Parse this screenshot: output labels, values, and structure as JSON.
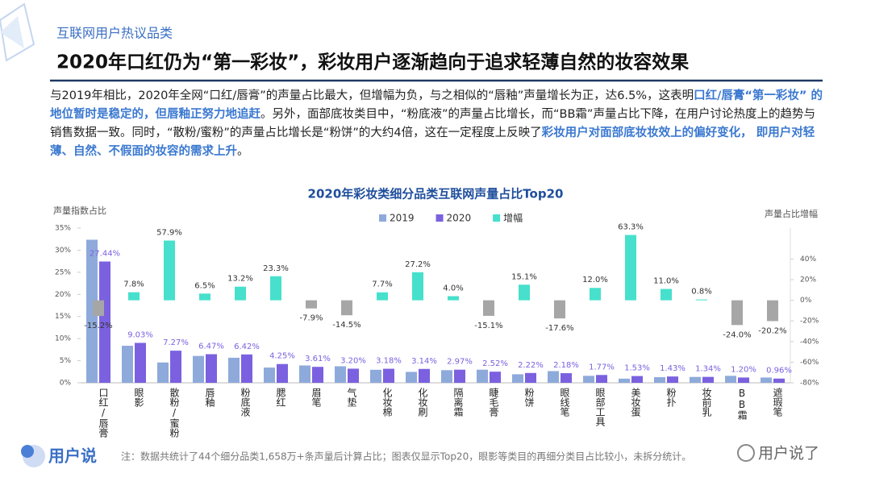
{
  "header": {
    "subtitle": "互联网用户热议品类",
    "title": "2020年口红仍为“第一彩妆”，彩妆用户逐渐趋向于追求轻薄自然的妆容效果"
  },
  "paragraph": {
    "segments": [
      {
        "text": "与2019年相比，2020年全网“口红/唇膏”的声量占比最大，但增幅为负，与之相似的“唇釉”声量增长为正，达6.5%，这表明",
        "highlight": false
      },
      {
        "text": "口红/唇膏“第一彩妆” 的地位暂时是稳定的，但唇釉正努力地追赶",
        "highlight": true
      },
      {
        "text": "。另外，面部底妆类目中，“粉底液”的声量占比增长，而“BB霜”声量占比下降，在用户讨论热度上的趋势与销售数据一致。同时，“散粉/蜜粉”的声量占比增长是“粉饼”的大约4倍，这在一定程度上反映了",
        "highlight": false
      },
      {
        "text": "彩妆用户对面部底妆妆效上的偏好变化， 即用户对轻薄、自然、不假面的妆容的需求上升",
        "highlight": true
      },
      {
        "text": "。",
        "highlight": false
      }
    ]
  },
  "chart_data": {
    "type": "bar",
    "title": "2020年彩妆类细分品类互联网声量占比Top20",
    "y_label": "声量指数占比",
    "y2_label": "声量占比增幅",
    "categories": [
      "口红/唇膏",
      "眼影",
      "散粉/蜜粉",
      "唇釉",
      "粉底液",
      "腮红",
      "眉笔",
      "气垫",
      "化妆棉",
      "化妆刷",
      "隔离霜",
      "睫毛膏",
      "粉饼",
      "眼线笔",
      "眼部工具",
      "美妆蛋",
      "粉扑",
      "妆前乳",
      "BB霜",
      "遮瑕笔"
    ],
    "series": [
      {
        "name": "2019",
        "color": "#8eaadb",
        "values": [
          32.36,
          8.38,
          4.6,
          6.08,
          5.67,
          3.45,
          3.92,
          3.74,
          2.95,
          2.47,
          2.86,
          2.97,
          1.93,
          2.65,
          1.58,
          0.94,
          1.29,
          1.33,
          1.58,
          1.2
        ]
      },
      {
        "name": "2020",
        "color": "#7b61e0",
        "values": [
          27.44,
          9.03,
          7.27,
          6.47,
          6.42,
          4.25,
          3.61,
          3.2,
          3.18,
          3.14,
          2.97,
          2.52,
          2.22,
          2.18,
          1.77,
          1.53,
          1.43,
          1.34,
          1.2,
          0.96
        ],
        "value_labels": [
          "27.44%",
          "9.03%",
          "7.27%",
          "6.47%",
          "6.42%",
          "4.25%",
          "3.61%",
          "3.20%",
          "3.18%",
          "3.14%",
          "2.97%",
          "2.52%",
          "2.22%",
          "2.18%",
          "1.77%",
          "1.53%",
          "1.43%",
          "1.34%",
          "1.20%",
          "0.96%"
        ]
      },
      {
        "name": "增幅",
        "color": "#46e0cc",
        "negative_color": "#a6a6a6",
        "axis": "y2",
        "values": [
          -15.2,
          7.8,
          57.9,
          6.5,
          13.2,
          23.3,
          -7.9,
          -14.5,
          7.7,
          27.2,
          4.0,
          -15.1,
          15.1,
          -17.6,
          12.0,
          63.3,
          11.0,
          0.8,
          -24.0,
          -20.2
        ],
        "value_labels": [
          "-15.2%",
          "7.8%",
          "57.9%",
          "6.5%",
          "13.2%",
          "23.3%",
          "-7.9%",
          "-14.5%",
          "7.7%",
          "27.2%",
          "4.0%",
          "-15.1%",
          "15.1%",
          "-17.6%",
          "12.0%",
          "63.3%",
          "11.0%",
          "0.8%",
          "-24.0%",
          "-20.2%"
        ]
      }
    ],
    "ylim": [
      0,
      35
    ],
    "yticks": [
      {
        "value": 0,
        "label": "0%"
      },
      {
        "value": 5,
        "label": "5%"
      },
      {
        "value": 10,
        "label": "10%"
      },
      {
        "value": 15,
        "label": "15%"
      },
      {
        "value": 20,
        "label": "20%"
      },
      {
        "value": 25,
        "label": "25%"
      },
      {
        "value": 30,
        "label": "30%"
      },
      {
        "value": 35,
        "label": "35%"
      }
    ],
    "y2lim": [
      -80,
      70
    ],
    "y2ticks": [
      {
        "value": -80,
        "label": "-80%"
      },
      {
        "value": -60,
        "label": "-60%"
      },
      {
        "value": -40,
        "label": "-40%"
      },
      {
        "value": -20,
        "label": "-20%"
      },
      {
        "value": 0,
        "label": "0%"
      },
      {
        "value": 20,
        "label": "20%"
      },
      {
        "value": 40,
        "label": "40%"
      }
    ],
    "grid": false,
    "legend": "top"
  },
  "footnote": "注：数据共统计了44个细分品类1,658万+条声量后计算占比；图表仅显示Top20，眼影等类目的再细分类目占比较小，未拆分统计。",
  "logo": {
    "left": "用户说",
    "right": "用户说了"
  }
}
